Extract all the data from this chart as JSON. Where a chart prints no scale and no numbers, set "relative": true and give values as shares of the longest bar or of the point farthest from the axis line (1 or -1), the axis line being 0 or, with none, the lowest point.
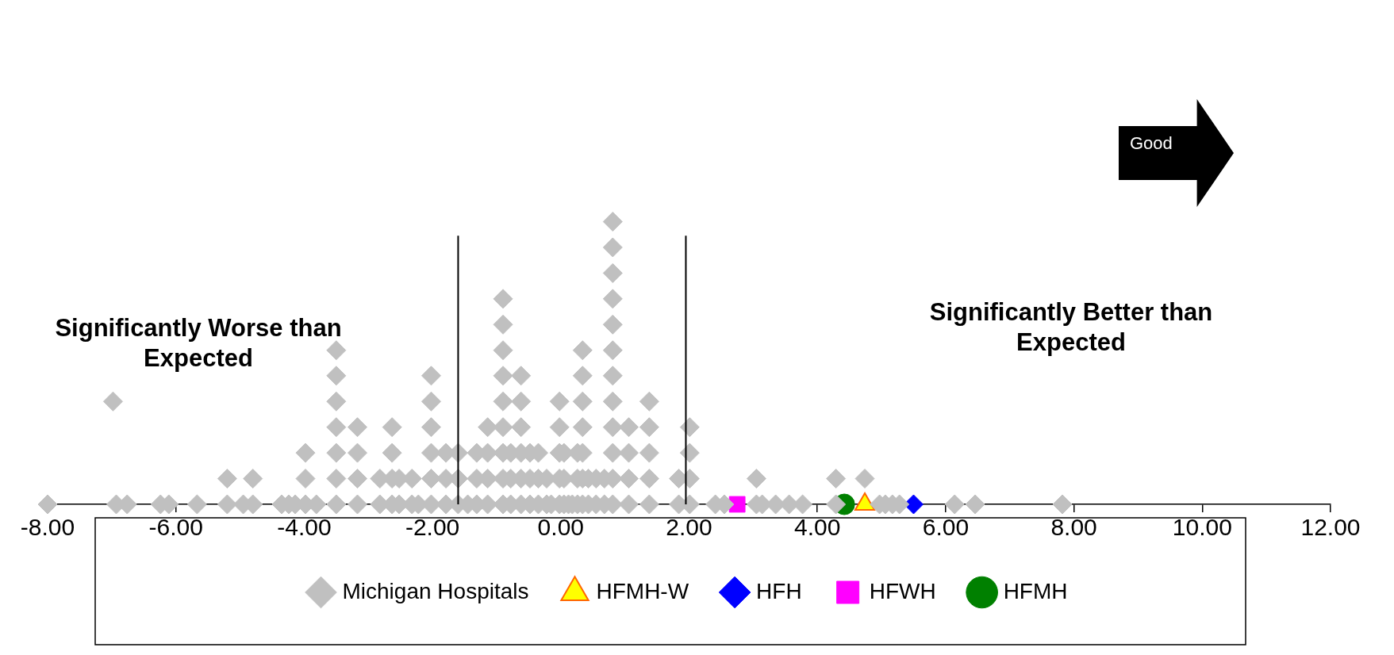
{
  "chart_data": {
    "type": "scatter",
    "relative": true,
    "xlim": [
      -8,
      12
    ],
    "xticks": [
      {
        "value": -8,
        "label": "-8.00"
      },
      {
        "value": -6,
        "label": "-6.00"
      },
      {
        "value": -4,
        "label": "-4.00"
      },
      {
        "value": -2,
        "label": "-2.00"
      },
      {
        "value": 0,
        "label": "0.00"
      },
      {
        "value": 2,
        "label": "2.00"
      },
      {
        "value": 4,
        "label": "4.00"
      },
      {
        "value": 6,
        "label": "6.00"
      },
      {
        "value": 8,
        "label": "8.00"
      },
      {
        "value": 10,
        "label": "10.00"
      },
      {
        "value": 12,
        "label": "12.00"
      }
    ],
    "legend": "bottom",
    "ref_lines": [
      {
        "axis": "x",
        "value": -1.6,
        "color": "#000000"
      },
      {
        "axis": "x",
        "value": 1.95,
        "color": "#000000"
      }
    ],
    "annotations": [
      "Significantly Worse than Expected",
      "Significantly Better than Expected",
      "Good"
    ],
    "series": [
      {
        "name": "Michigan Hospitals",
        "color": "#c0c0c0",
        "marker": "diamond",
        "x": [
          -8.0,
          -6.98,
          -6.93,
          -6.76,
          -6.24,
          -6.11,
          -5.67,
          -5.2,
          -5.2,
          -4.95,
          -4.8,
          -4.8,
          -4.35,
          -4.24,
          -4.14,
          -3.98,
          -3.98,
          -3.98,
          -3.81,
          -3.5,
          -3.5,
          -3.5,
          -3.5,
          -3.5,
          -3.5,
          -3.5,
          -3.17,
          -3.17,
          -3.17,
          -3.17,
          -2.82,
          -2.82,
          -2.63,
          -2.63,
          -2.63,
          -2.63,
          -2.52,
          -2.52,
          -2.32,
          -2.32,
          -2.22,
          -2.02,
          -2.02,
          -2.02,
          -2.02,
          -2.02,
          -2.02,
          -1.79,
          -1.79,
          -1.79,
          -1.6,
          -1.6,
          -1.6,
          -1.45,
          -1.31,
          -1.31,
          -1.31,
          -1.14,
          -1.14,
          -1.14,
          -1.14,
          -0.9,
          -0.9,
          -0.9,
          -0.9,
          -0.9,
          -0.9,
          -0.9,
          -0.9,
          -0.9,
          -0.78,
          -0.78,
          -0.78,
          -0.62,
          -0.62,
          -0.62,
          -0.62,
          -0.62,
          -0.62,
          -0.48,
          -0.48,
          -0.48,
          -0.35,
          -0.35,
          -0.35,
          -0.22,
          -0.22,
          -0.15,
          -0.02,
          -0.02,
          -0.02,
          -0.02,
          -0.02,
          0.05,
          0.05,
          0.05,
          0.12,
          0.18,
          0.26,
          0.26,
          0.26,
          0.34,
          0.34,
          0.34,
          0.34,
          0.34,
          0.34,
          0.34,
          0.43,
          0.43,
          0.55,
          0.55,
          0.68,
          0.68,
          0.81,
          0.81,
          0.81,
          0.81,
          0.81,
          0.81,
          0.81,
          0.81,
          0.81,
          0.81,
          0.81,
          0.81,
          1.06,
          1.06,
          1.06,
          1.06,
          1.38,
          1.38,
          1.38,
          1.38,
          1.38,
          1.84,
          1.84,
          2.01,
          2.01,
          2.01,
          2.01,
          2.41,
          2.55,
          3.05,
          3.05,
          3.14,
          3.35,
          3.56,
          3.77,
          4.29,
          4.29,
          4.74,
          4.97,
          5.06,
          5.17,
          5.28,
          6.14,
          6.46,
          7.82
        ],
        "values": [
          0,
          0.364,
          0,
          0,
          0,
          0,
          0,
          0,
          0.091,
          0,
          0,
          0.091,
          0,
          0,
          0,
          0,
          0.091,
          0.182,
          0,
          0,
          0.091,
          0.182,
          0.273,
          0.364,
          0.455,
          0.545,
          0,
          0.091,
          0.182,
          0.273,
          0,
          0.091,
          0,
          0.091,
          0.182,
          0.273,
          0,
          0.091,
          0,
          0.091,
          0,
          0,
          0.091,
          0.182,
          0.273,
          0.364,
          0.455,
          0,
          0.091,
          0.182,
          0,
          0.091,
          0.182,
          0,
          0,
          0.091,
          0.182,
          0,
          0.091,
          0.182,
          0.273,
          0,
          0.091,
          0.182,
          0.273,
          0.364,
          0.455,
          0.545,
          0.636,
          0.727,
          0,
          0.091,
          0.182,
          0,
          0.091,
          0.182,
          0.273,
          0.364,
          0.455,
          0,
          0.091,
          0.182,
          0,
          0.091,
          0.182,
          0,
          0.091,
          0,
          0,
          0.091,
          0.182,
          0.273,
          0.364,
          0,
          0.091,
          0.182,
          0,
          0,
          0,
          0.091,
          0.182,
          0,
          0.091,
          0.182,
          0.273,
          0.364,
          0.455,
          0.545,
          0,
          0.091,
          0,
          0.091,
          0,
          0.091,
          0,
          0.091,
          0.182,
          0.273,
          0.364,
          0.455,
          0.545,
          0.636,
          0.727,
          0.818,
          0.909,
          1,
          0,
          0.091,
          0.182,
          0.273,
          0,
          0.091,
          0.182,
          0.273,
          0.364,
          0,
          0.091,
          0,
          0.091,
          0.182,
          0.273,
          0,
          0,
          0,
          0.091,
          0,
          0,
          0,
          0,
          0,
          0.091,
          0.091,
          0,
          0,
          0,
          0,
          0,
          0,
          0
        ]
      },
      {
        "name": "HFMH-W",
        "color": "#ffff00",
        "marker": "triangle",
        "x": [
          4.74
        ],
        "values": [
          0
        ]
      },
      {
        "name": "HFH",
        "color": "#0000ff",
        "marker": "diamond",
        "x": [
          5.5
        ],
        "values": [
          0
        ]
      },
      {
        "name": "HFWH",
        "color": "#ff00ff",
        "marker": "square",
        "x": [
          2.75
        ],
        "values": [
          0
        ]
      },
      {
        "name": "HFMH",
        "color": "#008000",
        "marker": "circle",
        "x": [
          4.42
        ],
        "values": [
          0
        ]
      }
    ]
  }
}
